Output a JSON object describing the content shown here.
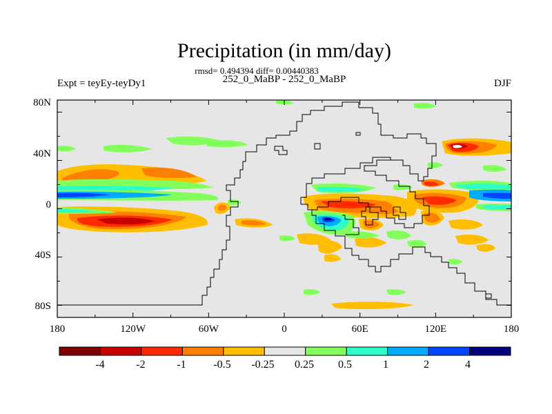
{
  "header": {
    "title": "Precipitation (in mm/day)",
    "stats": "rmsd= 0.494394 diff= 0.00440383",
    "subtitle": "252_0_MaBP - 252_0_MaBP",
    "left_label": "Expt = teyEy-teyDy1",
    "right_label": "DJF"
  },
  "axes": {
    "lon_ticks": [
      "180",
      "120W",
      "60W",
      "0",
      "60E",
      "120E",
      "180"
    ],
    "lat_ticks": [
      "80N",
      "40N",
      "0",
      "40S",
      "80S"
    ]
  },
  "colorbar": {
    "colors": [
      "#7f0000",
      "#c80000",
      "#ff2a00",
      "#ff7f00",
      "#ffbe00",
      "#e6e6e6",
      "#82ff5a",
      "#2dffc8",
      "#00aaff",
      "#0046ff",
      "#00007f"
    ],
    "labels": [
      "-4",
      "-2",
      "-1",
      "-0.5",
      "-0.25",
      "0.25",
      "0.5",
      "1",
      "2",
      "4"
    ]
  },
  "map": {
    "background": "#e6e6e6",
    "coast_color": "#000000"
  }
}
